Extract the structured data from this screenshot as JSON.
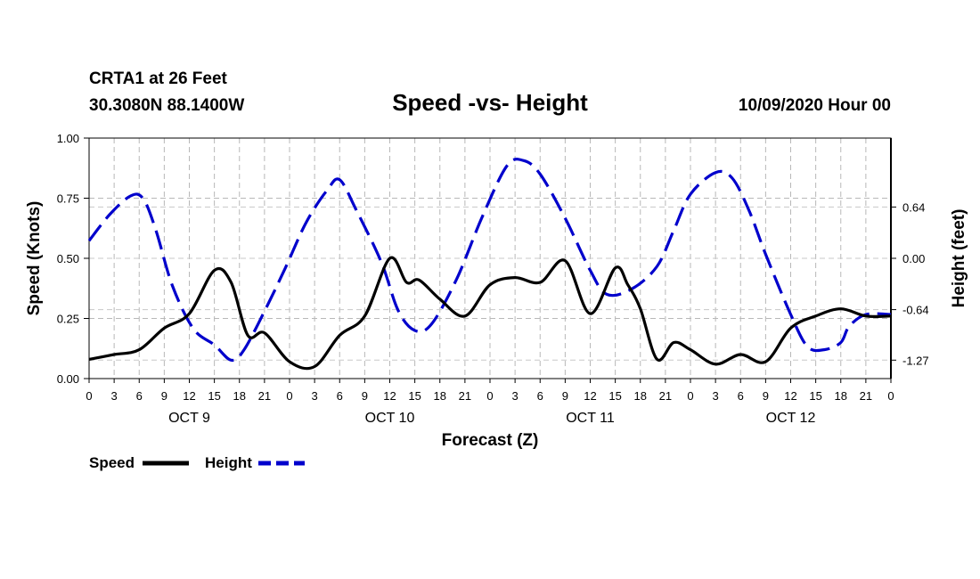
{
  "header": {
    "station": "CRTA1 at 26 Feet",
    "coords": "30.3080N 88.1400W",
    "title": "Speed -vs- Height",
    "run": "10/09/2020 Hour 00"
  },
  "chart_data": {
    "type": "line",
    "title": "Speed -vs- Height",
    "xlabel": "Forecast (Z)",
    "ylabel_left": "Speed (Knots)",
    "ylabel_right": "Height (feet)",
    "x_range_hours": [
      0,
      96
    ],
    "ylim_left": [
      0,
      1
    ],
    "ylim_right": [
      -1.5,
      1.5
    ],
    "x_tick_labels": [
      "0",
      "3",
      "6",
      "9",
      "12",
      "15",
      "18",
      "21",
      "0",
      "3",
      "6",
      "9",
      "12",
      "15",
      "18",
      "21",
      "0",
      "3",
      "6",
      "9",
      "12",
      "15",
      "18",
      "21",
      "0",
      "3",
      "6",
      "9",
      "12",
      "15",
      "18",
      "21",
      "0"
    ],
    "y_left_ticks": [
      "0.00",
      "0.25",
      "0.50",
      "0.75",
      "1.00"
    ],
    "y_left_tick_values": [
      0,
      0.25,
      0.5,
      0.75,
      1.0
    ],
    "y_right_ticks": [
      "-1.27",
      "-0.64",
      "0.00",
      "0.64"
    ],
    "y_right_tick_values": [
      -1.27,
      -0.64,
      0.0,
      0.64
    ],
    "day_labels": [
      "OCT 9",
      "OCT 10",
      "OCT 11",
      "OCT 12"
    ],
    "day_label_hours": [
      12,
      36,
      60,
      84
    ],
    "series": [
      {
        "name": "Speed",
        "axis": "left",
        "color": "#000000",
        "style": "solid",
        "x": [
          0,
          3,
          6,
          9,
          12,
          15,
          17,
          19,
          21,
          24,
          27,
          30,
          33,
          36,
          38,
          39.5,
          42,
          45,
          48,
          51,
          54,
          57,
          60,
          63,
          64.5,
          66,
          68,
          70,
          72,
          75,
          78,
          81,
          84,
          87,
          90,
          93,
          96
        ],
        "values": [
          0.08,
          0.1,
          0.12,
          0.21,
          0.27,
          0.45,
          0.4,
          0.18,
          0.19,
          0.07,
          0.05,
          0.18,
          0.26,
          0.5,
          0.4,
          0.41,
          0.33,
          0.26,
          0.39,
          0.42,
          0.4,
          0.49,
          0.27,
          0.46,
          0.39,
          0.29,
          0.08,
          0.15,
          0.12,
          0.06,
          0.1,
          0.07,
          0.21,
          0.26,
          0.29,
          0.26,
          0.26
        ]
      },
      {
        "name": "Height",
        "axis": "right",
        "color": "#0000cc",
        "style": "dashed",
        "x": [
          0,
          2.5,
          5,
          6.5,
          8,
          10,
          12.5,
          15,
          17,
          18.5,
          21,
          23.5,
          26,
          28.5,
          30,
          32,
          35,
          37,
          39,
          41,
          44,
          47,
          50,
          52,
          54,
          57,
          60,
          62,
          65,
          68,
          70,
          72,
          75,
          77,
          79,
          81,
          84,
          86,
          88,
          90,
          91,
          93,
          96
        ],
        "values": [
          0.22,
          0.55,
          0.78,
          0.74,
          0.35,
          -0.35,
          -0.88,
          -1.08,
          -1.27,
          -1.15,
          -0.66,
          -0.12,
          0.45,
          0.85,
          0.98,
          0.6,
          -0.05,
          -0.65,
          -0.9,
          -0.82,
          -0.26,
          0.5,
          1.15,
          1.22,
          1.05,
          0.5,
          -0.15,
          -0.45,
          -0.38,
          -0.1,
          0.35,
          0.8,
          1.07,
          1.0,
          0.6,
          0.05,
          -0.7,
          -1.1,
          -1.14,
          -1.05,
          -0.85,
          -0.7,
          -0.7
        ]
      }
    ],
    "legend": [
      {
        "label": "Speed",
        "color": "#000000",
        "style": "solid"
      },
      {
        "label": "Height",
        "color": "#0000cc",
        "style": "dashed"
      }
    ],
    "legend_position": "bottom-left",
    "grid": true
  }
}
